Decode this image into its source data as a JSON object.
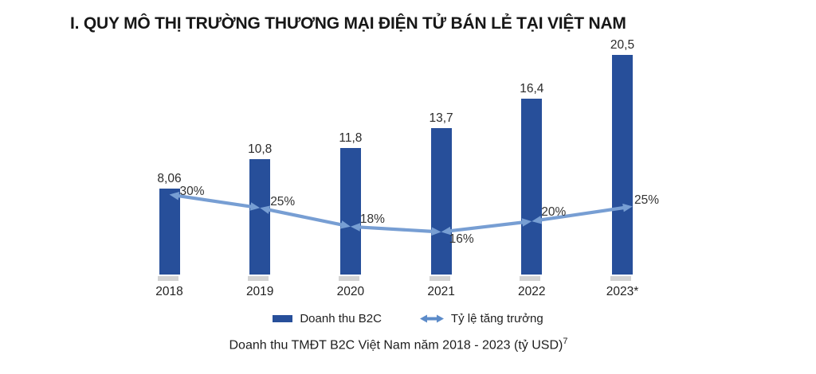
{
  "title": "I. QUY MÔ THỊ TRƯỜNG THƯƠNG MẠI ĐIỆN TỬ BÁN LẺ TẠI VIỆT NAM",
  "chart_data": {
    "type": "bar",
    "combo": "bar with growth-rate line overlay",
    "categories": [
      "2018",
      "2019",
      "2020",
      "2021",
      "2022",
      "2023*"
    ],
    "series": [
      {
        "name": "Doanh thu B2C",
        "type": "bar",
        "values": [
          8.06,
          10.8,
          11.8,
          13.7,
          16.4,
          20.5
        ],
        "value_labels": [
          "8,06",
          "10,8",
          "11,8",
          "13,7",
          "16,4",
          "20,5"
        ],
        "color": "#274F9A"
      },
      {
        "name": "Tỷ lệ tăng trưởng",
        "type": "line",
        "values": [
          30,
          25,
          18,
          16,
          20,
          25
        ],
        "value_labels": [
          "30%",
          "25%",
          "18%",
          "16%",
          "20%",
          "25%"
        ],
        "color": "#779ED3"
      }
    ],
    "legend_position": "bottom",
    "gridlines": false,
    "y_axis_visible": false,
    "x_axis_visible": false
  },
  "legend": {
    "revenue_label": "Doanh thu B2C",
    "growth_label": "Tỷ lệ tăng trưởng"
  },
  "caption": {
    "text": "Doanh thu TMĐT B2C Việt Nam năm 2018 - 2023 (tỷ USD)",
    "footnote_marker": "7"
  },
  "colors": {
    "bar": "#274F9A",
    "line": "#779ED3",
    "legend_arrow": "#5C8BC9",
    "bar_shadow": "#D3D3D3"
  }
}
